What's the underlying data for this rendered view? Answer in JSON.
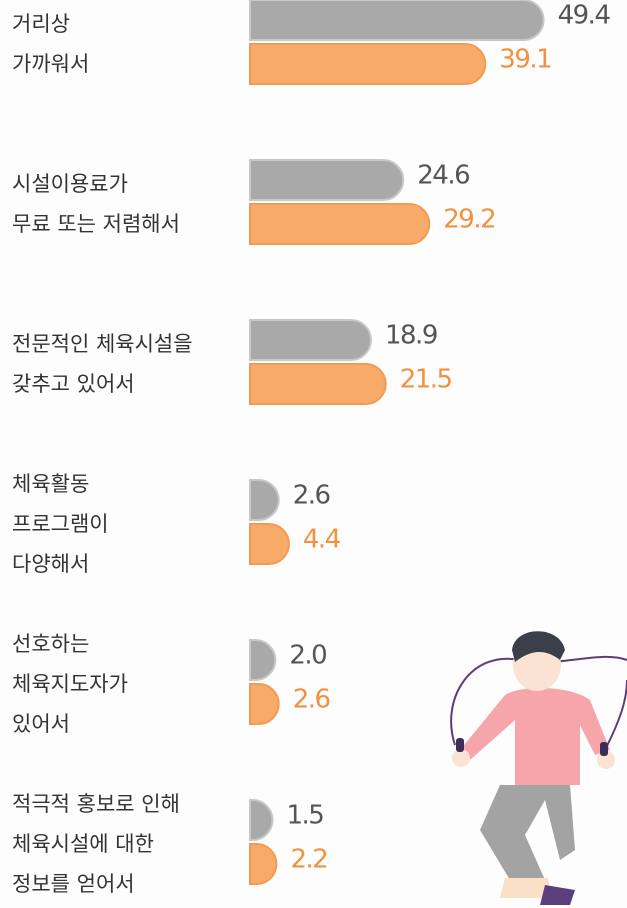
{
  "chart_data": {
    "type": "bar",
    "orientation": "horizontal",
    "categories": [
      [
        "거리상",
        "가까워서"
      ],
      [
        "시설이용료가",
        "무료 또는 저렴해서"
      ],
      [
        "전문적인 체육시설을",
        "갖추고 있어서"
      ],
      [
        "체육활동",
        "프로그램이",
        "다양해서"
      ],
      [
        "선호하는",
        "체육지도자가",
        "있어서"
      ],
      [
        "적극적 홍보로 인해",
        "체육시설에 대한",
        "정보를 얻어서"
      ]
    ],
    "series": [
      {
        "color": "#a9a9a9",
        "label_color": "#555555",
        "values": [
          49.4,
          24.6,
          18.9,
          2.6,
          2.0,
          1.5
        ],
        "value_labels": [
          "49.4",
          "24.6",
          "18.9",
          "2.6",
          "2.0",
          "1.5"
        ]
      },
      {
        "color": "#f8aa69",
        "label_color": "#f2913f",
        "values": [
          39.1,
          29.2,
          21.5,
          4.4,
          2.6,
          2.2
        ],
        "value_labels": [
          "39.1",
          "29.2",
          "21.5",
          "4.4",
          "2.6",
          "2.2"
        ]
      }
    ]
  }
}
